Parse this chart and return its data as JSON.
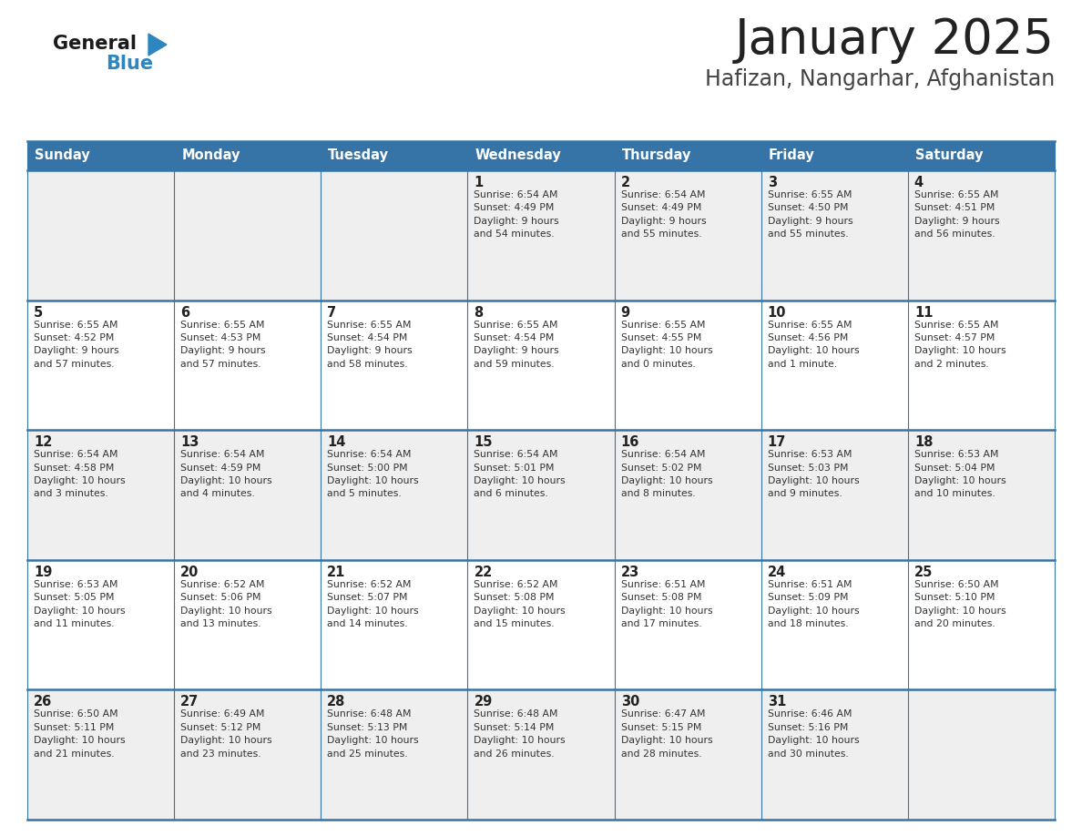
{
  "title": "January 2025",
  "subtitle": "Hafizan, Nangarhar, Afghanistan",
  "days_of_week": [
    "Sunday",
    "Monday",
    "Tuesday",
    "Wednesday",
    "Thursday",
    "Friday",
    "Saturday"
  ],
  "header_bg": "#3674A8",
  "header_text": "#FFFFFF",
  "row_bg_odd": "#EFEFEF",
  "row_bg_even": "#FFFFFF",
  "cell_border": "#3674A8",
  "day_num_color": "#222222",
  "cell_text_color": "#333333",
  "title_color": "#222222",
  "subtitle_color": "#444444",
  "blue_color": "#2E86C1",
  "calendar_data": [
    [
      {
        "day": null,
        "info": null
      },
      {
        "day": null,
        "info": null
      },
      {
        "day": null,
        "info": null
      },
      {
        "day": 1,
        "info": "Sunrise: 6:54 AM\nSunset: 4:49 PM\nDaylight: 9 hours\nand 54 minutes."
      },
      {
        "day": 2,
        "info": "Sunrise: 6:54 AM\nSunset: 4:49 PM\nDaylight: 9 hours\nand 55 minutes."
      },
      {
        "day": 3,
        "info": "Sunrise: 6:55 AM\nSunset: 4:50 PM\nDaylight: 9 hours\nand 55 minutes."
      },
      {
        "day": 4,
        "info": "Sunrise: 6:55 AM\nSunset: 4:51 PM\nDaylight: 9 hours\nand 56 minutes."
      }
    ],
    [
      {
        "day": 5,
        "info": "Sunrise: 6:55 AM\nSunset: 4:52 PM\nDaylight: 9 hours\nand 57 minutes."
      },
      {
        "day": 6,
        "info": "Sunrise: 6:55 AM\nSunset: 4:53 PM\nDaylight: 9 hours\nand 57 minutes."
      },
      {
        "day": 7,
        "info": "Sunrise: 6:55 AM\nSunset: 4:54 PM\nDaylight: 9 hours\nand 58 minutes."
      },
      {
        "day": 8,
        "info": "Sunrise: 6:55 AM\nSunset: 4:54 PM\nDaylight: 9 hours\nand 59 minutes."
      },
      {
        "day": 9,
        "info": "Sunrise: 6:55 AM\nSunset: 4:55 PM\nDaylight: 10 hours\nand 0 minutes."
      },
      {
        "day": 10,
        "info": "Sunrise: 6:55 AM\nSunset: 4:56 PM\nDaylight: 10 hours\nand 1 minute."
      },
      {
        "day": 11,
        "info": "Sunrise: 6:55 AM\nSunset: 4:57 PM\nDaylight: 10 hours\nand 2 minutes."
      }
    ],
    [
      {
        "day": 12,
        "info": "Sunrise: 6:54 AM\nSunset: 4:58 PM\nDaylight: 10 hours\nand 3 minutes."
      },
      {
        "day": 13,
        "info": "Sunrise: 6:54 AM\nSunset: 4:59 PM\nDaylight: 10 hours\nand 4 minutes."
      },
      {
        "day": 14,
        "info": "Sunrise: 6:54 AM\nSunset: 5:00 PM\nDaylight: 10 hours\nand 5 minutes."
      },
      {
        "day": 15,
        "info": "Sunrise: 6:54 AM\nSunset: 5:01 PM\nDaylight: 10 hours\nand 6 minutes."
      },
      {
        "day": 16,
        "info": "Sunrise: 6:54 AM\nSunset: 5:02 PM\nDaylight: 10 hours\nand 8 minutes."
      },
      {
        "day": 17,
        "info": "Sunrise: 6:53 AM\nSunset: 5:03 PM\nDaylight: 10 hours\nand 9 minutes."
      },
      {
        "day": 18,
        "info": "Sunrise: 6:53 AM\nSunset: 5:04 PM\nDaylight: 10 hours\nand 10 minutes."
      }
    ],
    [
      {
        "day": 19,
        "info": "Sunrise: 6:53 AM\nSunset: 5:05 PM\nDaylight: 10 hours\nand 11 minutes."
      },
      {
        "day": 20,
        "info": "Sunrise: 6:52 AM\nSunset: 5:06 PM\nDaylight: 10 hours\nand 13 minutes."
      },
      {
        "day": 21,
        "info": "Sunrise: 6:52 AM\nSunset: 5:07 PM\nDaylight: 10 hours\nand 14 minutes."
      },
      {
        "day": 22,
        "info": "Sunrise: 6:52 AM\nSunset: 5:08 PM\nDaylight: 10 hours\nand 15 minutes."
      },
      {
        "day": 23,
        "info": "Sunrise: 6:51 AM\nSunset: 5:08 PM\nDaylight: 10 hours\nand 17 minutes."
      },
      {
        "day": 24,
        "info": "Sunrise: 6:51 AM\nSunset: 5:09 PM\nDaylight: 10 hours\nand 18 minutes."
      },
      {
        "day": 25,
        "info": "Sunrise: 6:50 AM\nSunset: 5:10 PM\nDaylight: 10 hours\nand 20 minutes."
      }
    ],
    [
      {
        "day": 26,
        "info": "Sunrise: 6:50 AM\nSunset: 5:11 PM\nDaylight: 10 hours\nand 21 minutes."
      },
      {
        "day": 27,
        "info": "Sunrise: 6:49 AM\nSunset: 5:12 PM\nDaylight: 10 hours\nand 23 minutes."
      },
      {
        "day": 28,
        "info": "Sunrise: 6:48 AM\nSunset: 5:13 PM\nDaylight: 10 hours\nand 25 minutes."
      },
      {
        "day": 29,
        "info": "Sunrise: 6:48 AM\nSunset: 5:14 PM\nDaylight: 10 hours\nand 26 minutes."
      },
      {
        "day": 30,
        "info": "Sunrise: 6:47 AM\nSunset: 5:15 PM\nDaylight: 10 hours\nand 28 minutes."
      },
      {
        "day": 31,
        "info": "Sunrise: 6:46 AM\nSunset: 5:16 PM\nDaylight: 10 hours\nand 30 minutes."
      },
      {
        "day": null,
        "info": null
      }
    ]
  ]
}
